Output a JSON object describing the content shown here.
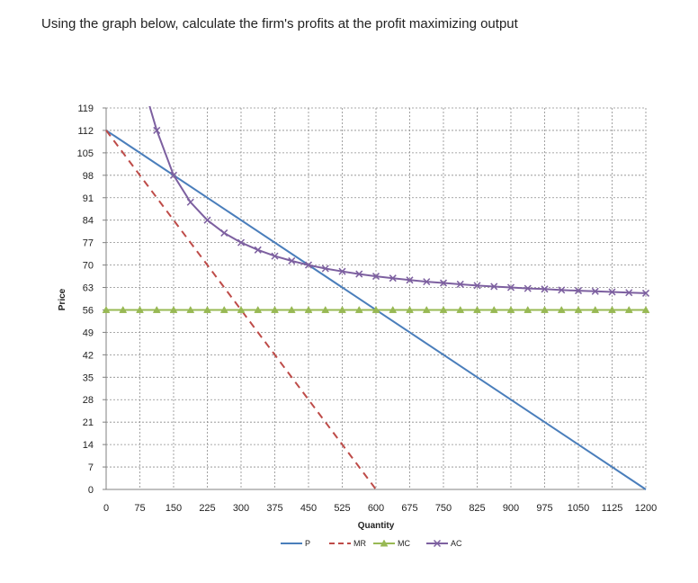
{
  "question": "Using the graph below, calculate the firm's profits at the profit maximizing output",
  "chart_data": {
    "type": "line",
    "xlabel": "Quantity",
    "ylabel": "Price",
    "xlim": [
      0,
      1200
    ],
    "ylim": [
      0,
      119
    ],
    "x_ticks": [
      0,
      75,
      150,
      225,
      300,
      375,
      450,
      525,
      600,
      675,
      750,
      825,
      900,
      975,
      1050,
      1125,
      1200
    ],
    "y_ticks": [
      0,
      7,
      14,
      21,
      28,
      35,
      42,
      49,
      56,
      63,
      70,
      77,
      84,
      91,
      98,
      105,
      112,
      119
    ],
    "grid": true,
    "legend_position": "bottom",
    "series": [
      {
        "name": "P",
        "color": "#4a7ebb",
        "style": "solid",
        "marker": "none",
        "x": [
          0,
          1200
        ],
        "y": [
          112,
          0
        ]
      },
      {
        "name": "MR",
        "color": "#be4b48",
        "style": "dashed",
        "marker": "none",
        "x": [
          0,
          600
        ],
        "y": [
          112,
          0
        ]
      },
      {
        "name": "MC",
        "color": "#98b954",
        "style": "solid",
        "marker": "triangle",
        "x": [
          0,
          37.5,
          75,
          112.5,
          150,
          187.5,
          225,
          262.5,
          300,
          337.5,
          375,
          412.5,
          450,
          487.5,
          525,
          562.5,
          600,
          637.5,
          675,
          712.5,
          750,
          787.5,
          825,
          862.5,
          900,
          937.5,
          975,
          1012.5,
          1050,
          1087.5,
          1125,
          1162.5,
          1200
        ],
        "y": [
          56,
          56,
          56,
          56,
          56,
          56,
          56,
          56,
          56,
          56,
          56,
          56,
          56,
          56,
          56,
          56,
          56,
          56,
          56,
          56,
          56,
          56,
          56,
          56,
          56,
          56,
          56,
          56,
          56,
          56,
          56,
          56,
          56
        ]
      },
      {
        "name": "AC",
        "color": "#7d60a0",
        "style": "solid",
        "marker": "x",
        "x": [
          112.5,
          150,
          187.5,
          225,
          262.5,
          300,
          337.5,
          375,
          412.5,
          450,
          487.5,
          525,
          562.5,
          600,
          637.5,
          675,
          712.5,
          750,
          787.5,
          825,
          862.5,
          900,
          937.5,
          975,
          1012.5,
          1050,
          1087.5,
          1125,
          1162.5,
          1200
        ],
        "y": [
          112,
          98,
          89.6,
          84,
          80,
          77,
          74.7,
          72.8,
          71.3,
          70,
          68.9,
          68,
          67.2,
          66.5,
          65.9,
          65.3,
          64.8,
          64.4,
          64,
          63.6,
          63.3,
          63,
          62.7,
          62.5,
          62.2,
          62,
          61.8,
          61.6,
          61.4,
          61.2
        ]
      }
    ]
  }
}
